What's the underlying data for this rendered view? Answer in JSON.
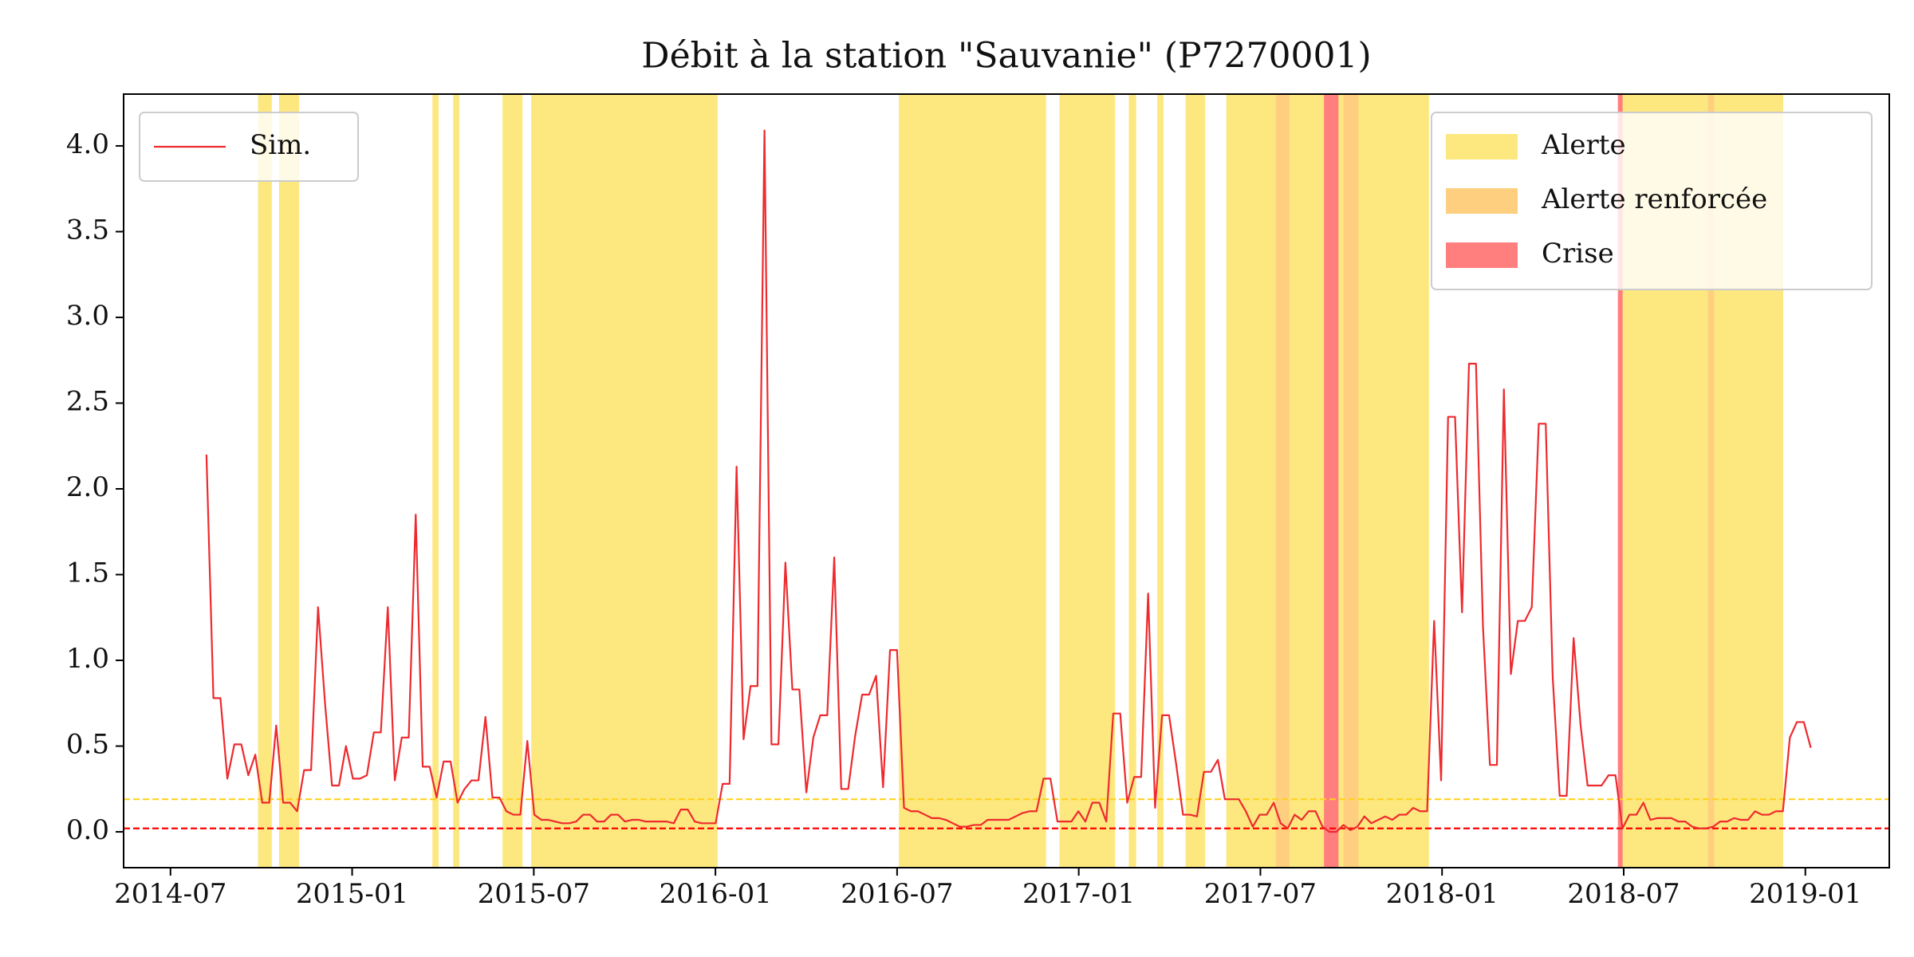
{
  "chart_data": {
    "type": "line",
    "title": "Débit à la station \"Sauvanie\" (P7270001)",
    "x": [
      2014.599,
      2014.6182,
      2014.6374,
      2014.6566,
      2014.6758,
      2014.695,
      2014.7142,
      2014.7334,
      2014.7526,
      2014.7718,
      2014.791,
      2014.8102,
      2014.8294,
      2014.8486,
      2014.8678,
      2014.887,
      2014.9062,
      2014.9254,
      2014.9446,
      2014.9638,
      2014.983,
      2015.0022,
      2015.0214,
      2015.0406,
      2015.0598,
      2015.079,
      2015.0982,
      2015.1174,
      2015.1366,
      2015.1558,
      2015.175,
      2015.1942,
      2015.2134,
      2015.2326,
      2015.2518,
      2015.271,
      2015.2902,
      2015.3094,
      2015.3286,
      2015.3478,
      2015.367,
      2015.3862,
      2015.4054,
      2015.4246,
      2015.4438,
      2015.463,
      2015.4822,
      2015.5014,
      2015.5206,
      2015.5398,
      2015.559,
      2015.5782,
      2015.5974,
      2015.6166,
      2015.6358,
      2015.655,
      2015.6742,
      2015.6934,
      2015.7126,
      2015.7318,
      2015.751,
      2015.7702,
      2015.7894,
      2015.8086,
      2015.8278,
      2015.847,
      2015.8662,
      2015.8854,
      2015.9046,
      2015.9238,
      2015.943,
      2015.9622,
      2015.9814,
      2016.0006,
      2016.0198,
      2016.039,
      2016.0582,
      2016.0774,
      2016.0966,
      2016.1158,
      2016.135,
      2016.1542,
      2016.1734,
      2016.1926,
      2016.2118,
      2016.231,
      2016.2502,
      2016.2694,
      2016.2886,
      2016.3078,
      2016.327,
      2016.3462,
      2016.3654,
      2016.3846,
      2016.4038,
      2016.423,
      2016.4422,
      2016.4614,
      2016.4806,
      2016.4998,
      2016.519,
      2016.5382,
      2016.5574,
      2016.5766,
      2016.5958,
      2016.615,
      2016.6342,
      2016.6534,
      2016.6726,
      2016.6918,
      2016.711,
      2016.7302,
      2016.7494,
      2016.7686,
      2016.7878,
      2016.807,
      2016.8262,
      2016.8454,
      2016.8646,
      2016.8838,
      2016.903,
      2016.9222,
      2016.9414,
      2016.9606,
      2016.9798,
      2016.999,
      2017.0182,
      2017.0374,
      2017.0566,
      2017.0758,
      2017.095,
      2017.1142,
      2017.1334,
      2017.1526,
      2017.1718,
      2017.191,
      2017.2102,
      2017.2294,
      2017.2486,
      2017.2678,
      2017.287,
      2017.3062,
      2017.3254,
      2017.3446,
      2017.3638,
      2017.383,
      2017.4022,
      2017.4214,
      2017.4406,
      2017.4598,
      2017.479,
      2017.4982,
      2017.5174,
      2017.5366,
      2017.5558,
      2017.575,
      2017.5942,
      2017.6134,
      2017.6326,
      2017.6518,
      2017.671,
      2017.6902,
      2017.7094,
      2017.7286,
      2017.7478,
      2017.767,
      2017.7862,
      2017.8054,
      2017.8246,
      2017.8438,
      2017.863,
      2017.8822,
      2017.9014,
      2017.9206,
      2017.9398,
      2017.959,
      2017.9782,
      2017.9974,
      2018.0166,
      2018.0358,
      2018.055,
      2018.0742,
      2018.0934,
      2018.1126,
      2018.1318,
      2018.151,
      2018.1702,
      2018.1894,
      2018.2086,
      2018.2278,
      2018.247,
      2018.2662,
      2018.2854,
      2018.3046,
      2018.3238,
      2018.343,
      2018.3622,
      2018.3814,
      2018.4006,
      2018.4198,
      2018.439,
      2018.4582,
      2018.4774,
      2018.4966,
      2018.5158,
      2018.535,
      2018.5542,
      2018.5734,
      2018.5926,
      2018.6118,
      2018.631,
      2018.6502,
      2018.6694,
      2018.6886,
      2018.7078,
      2018.727,
      2018.7462,
      2018.7654,
      2018.7846,
      2018.8038,
      2018.823,
      2018.8422,
      2018.8614,
      2018.8806,
      2018.8998,
      2018.919,
      2018.9382,
      2018.9574,
      2018.9766,
      2018.9958,
      2019.015
    ],
    "series": [
      {
        "name": "Sim.",
        "color": "#ee2a2e",
        "values": [
          2.2,
          0.78,
          0.78,
          0.31,
          0.51,
          0.51,
          0.33,
          0.45,
          0.17,
          0.17,
          0.62,
          0.17,
          0.17,
          0.12,
          0.36,
          0.36,
          1.31,
          0.75,
          0.27,
          0.27,
          0.5,
          0.31,
          0.31,
          0.33,
          0.58,
          0.58,
          1.31,
          0.3,
          0.55,
          0.55,
          1.85,
          0.38,
          0.38,
          0.2,
          0.41,
          0.41,
          0.17,
          0.25,
          0.3,
          0.3,
          0.67,
          0.2,
          0.2,
          0.12,
          0.1,
          0.1,
          0.53,
          0.1,
          0.07,
          0.07,
          0.06,
          0.05,
          0.05,
          0.06,
          0.1,
          0.1,
          0.06,
          0.06,
          0.1,
          0.1,
          0.06,
          0.07,
          0.07,
          0.06,
          0.06,
          0.06,
          0.06,
          0.05,
          0.13,
          0.13,
          0.06,
          0.05,
          0.05,
          0.05,
          0.28,
          0.28,
          2.13,
          0.54,
          0.85,
          0.85,
          4.09,
          0.51,
          0.51,
          1.57,
          0.83,
          0.83,
          0.23,
          0.55,
          0.68,
          0.68,
          1.6,
          0.25,
          0.25,
          0.56,
          0.8,
          0.8,
          0.91,
          0.26,
          1.06,
          1.06,
          0.14,
          0.12,
          0.12,
          0.1,
          0.08,
          0.08,
          0.07,
          0.05,
          0.03,
          0.03,
          0.04,
          0.04,
          0.07,
          0.07,
          0.07,
          0.07,
          0.09,
          0.11,
          0.12,
          0.12,
          0.31,
          0.31,
          0.06,
          0.06,
          0.06,
          0.12,
          0.06,
          0.17,
          0.17,
          0.06,
          0.69,
          0.69,
          0.17,
          0.32,
          0.32,
          1.39,
          0.14,
          0.68,
          0.68,
          0.4,
          0.1,
          0.1,
          0.09,
          0.35,
          0.35,
          0.42,
          0.19,
          0.19,
          0.19,
          0.12,
          0.03,
          0.1,
          0.1,
          0.17,
          0.05,
          0.02,
          0.1,
          0.07,
          0.12,
          0.12,
          0.03,
          0,
          0,
          0.04,
          0.01,
          0.03,
          0.09,
          0.05,
          0.07,
          0.09,
          0.07,
          0.1,
          0.1,
          0.14,
          0.12,
          0.12,
          1.23,
          0.3,
          2.42,
          2.42,
          1.28,
          2.73,
          2.73,
          1.2,
          0.39,
          0.39,
          2.58,
          0.92,
          1.23,
          1.23,
          1.31,
          2.38,
          2.38,
          0.9,
          0.21,
          0.21,
          1.13,
          0.62,
          0.27,
          0.27,
          0.27,
          0.33,
          0.33,
          0.02,
          0.1,
          0.1,
          0.17,
          0.07,
          0.08,
          0.08,
          0.08,
          0.06,
          0.06,
          0.03,
          0.02,
          0.02,
          0.03,
          0.06,
          0.06,
          0.08,
          0.07,
          0.07,
          0.12,
          0.1,
          0.1,
          0.12,
          0.12,
          0.55,
          0.64,
          0.64,
          0.49
        ]
      }
    ],
    "legend": "upper left",
    "bands": [
      {
        "name": "Alerte",
        "color": "#fde77f",
        "ranges": [
          [
            2014.741,
            2014.779
          ],
          [
            2014.799,
            2014.854
          ],
          [
            2015.221,
            2015.238
          ],
          [
            2015.278,
            2015.295
          ],
          [
            2015.414,
            2015.469
          ],
          [
            2015.493,
            2016.006
          ],
          [
            2016.505,
            2016.91
          ],
          [
            2016.947,
            2017.1
          ],
          [
            2017.138,
            2017.158
          ],
          [
            2017.216,
            2017.233
          ],
          [
            2017.294,
            2017.348
          ],
          [
            2017.406,
            2017.964
          ],
          [
            2018.484,
            2018.939
          ]
        ]
      },
      {
        "name": "Alerte renforcée",
        "color": "#fecf7f",
        "ranges": [
          [
            2017.542,
            2017.58
          ],
          [
            2017.729,
            2017.77
          ],
          [
            2018.732,
            2018.749
          ]
        ]
      },
      {
        "name": "Crise",
        "color": "#ff7f7f",
        "ranges": [
          [
            2017.675,
            2017.715
          ],
          [
            2018.484,
            2018.497
          ]
        ]
      }
    ],
    "bands_legend": "upper right",
    "hlines": [
      {
        "value": 0.19,
        "color": "#ffd21f"
      },
      {
        "value": 0.02,
        "color": "#ff0000"
      }
    ],
    "xlim": [
      2014.371,
      2019.231
    ],
    "xticks": [
      {
        "value": 2014.5,
        "label": "2014-07"
      },
      {
        "value": 2015,
        "label": "2015-01"
      },
      {
        "value": 2015.5,
        "label": "2015-07"
      },
      {
        "value": 2016,
        "label": "2016-01"
      },
      {
        "value": 2016.5,
        "label": "2016-07"
      },
      {
        "value": 2017,
        "label": "2017-01"
      },
      {
        "value": 2017.5,
        "label": "2017-07"
      },
      {
        "value": 2018,
        "label": "2018-01"
      },
      {
        "value": 2018.5,
        "label": "2018-07"
      },
      {
        "value": 2019,
        "label": "2019-01"
      }
    ],
    "ylim": [
      -0.209,
      4.302
    ],
    "yticks": [
      {
        "value": 0,
        "label": "0.0"
      },
      0.5,
      {
        "value": 1,
        "label": "1.0"
      },
      1.5,
      {
        "value": 2,
        "label": "2.0"
      },
      2.5,
      {
        "value": 3,
        "label": "3.0"
      },
      3.5,
      {
        "value": 4,
        "label": "4.0"
      }
    ]
  }
}
